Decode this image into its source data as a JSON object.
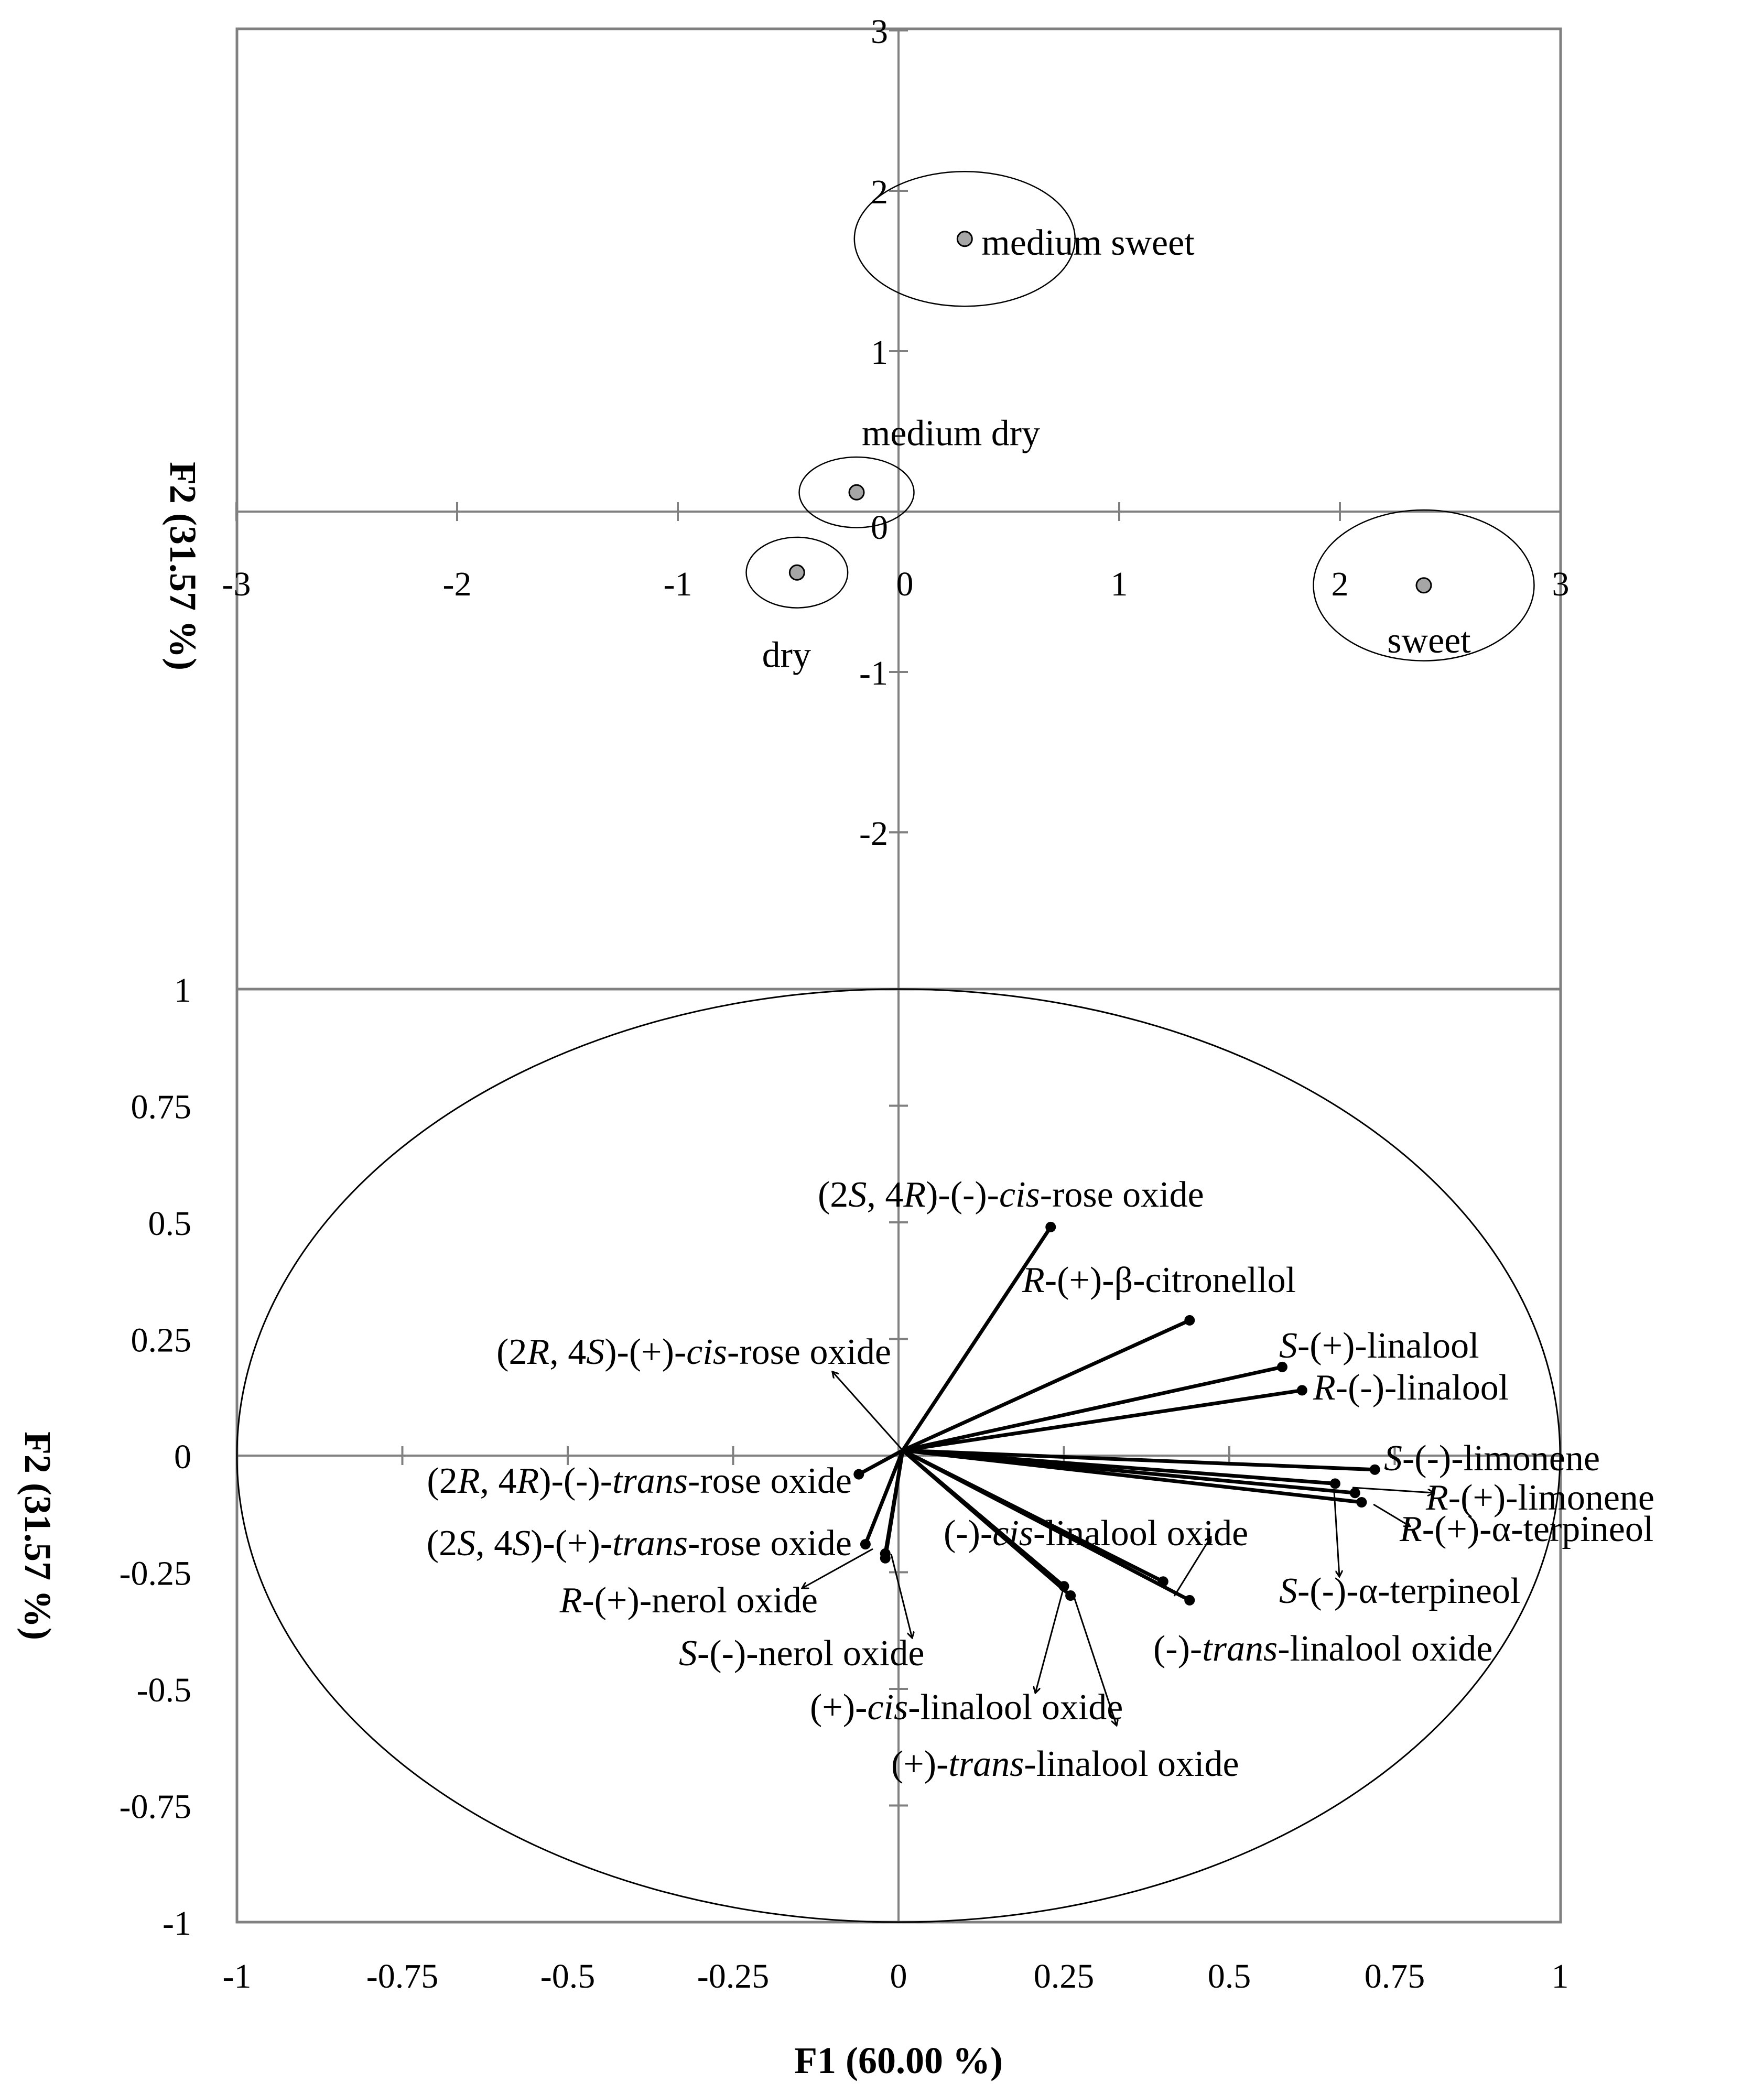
{
  "chart_data": [
    {
      "type": "scatter",
      "title": "",
      "xlabel": "",
      "ylabel": "F2 (31.57 %)",
      "xlim": [
        -3,
        3
      ],
      "ylim": [
        -3,
        3
      ],
      "xticks": [
        -3,
        -2,
        -1,
        0,
        1,
        2,
        3
      ],
      "yticks": [
        -2,
        -1,
        0,
        1,
        2,
        3
      ],
      "xtick_labels": [
        "-3",
        "-2",
        "-1",
        "0",
        "1",
        "2",
        "3"
      ],
      "ytick_labels": [
        "-2",
        "-1",
        "0",
        "1",
        "2",
        "3"
      ],
      "grid": false,
      "points": [
        {
          "label": "medium sweet",
          "x": 0.3,
          "y": 1.7,
          "rx": 0.5,
          "ry": 0.42
        },
        {
          "label": "medium dry",
          "x": -0.19,
          "y": 0.12,
          "rx": 0.26,
          "ry": 0.22
        },
        {
          "label": "dry",
          "x": -0.46,
          "y": -0.38,
          "rx": 0.23,
          "ry": 0.22
        },
        {
          "label": "sweet",
          "x": 2.38,
          "y": -0.46,
          "rx": 0.5,
          "ry": 0.47
        }
      ]
    },
    {
      "type": "scatter",
      "title": "",
      "xlabel": "F1 (60.00 %)",
      "ylabel": "F2 (31.57 %)",
      "xlim": [
        -1,
        1
      ],
      "ylim": [
        -1,
        1
      ],
      "xticks": [
        -1,
        -0.75,
        -0.5,
        -0.25,
        0,
        0.25,
        0.5,
        0.75,
        1
      ],
      "yticks": [
        -1,
        -0.75,
        -0.5,
        -0.25,
        0,
        0.25,
        0.5,
        0.75,
        1
      ],
      "xtick_labels": [
        "-1",
        "-0.75",
        "-0.5",
        "-0.25",
        "0",
        "0.25",
        "0.5",
        "0.75",
        "1"
      ],
      "ytick_labels": [
        "-1",
        "-0.75",
        "-0.5",
        "-0.25",
        "0",
        "0.25",
        "0.5",
        "0.75",
        "1"
      ],
      "grid": false,
      "circle_radius": 1,
      "vectors": [
        {
          "name": "(2S, 4R)-(-)-cis-rose oxide",
          "x": 0.23,
          "y": 0.49
        },
        {
          "name": "R-(+)-β-citronellol",
          "x": 0.44,
          "y": 0.29
        },
        {
          "name": "S-(+)-linalool",
          "x": 0.58,
          "y": 0.19
        },
        {
          "name": "R-(-)-linalool",
          "x": 0.61,
          "y": 0.14
        },
        {
          "name": "S-(-)-limonene",
          "x": 0.72,
          "y": -0.03
        },
        {
          "name": "R-(+)-limonene",
          "x": 0.69,
          "y": -0.08
        },
        {
          "name": "R-(+)-α-terpineol",
          "x": 0.7,
          "y": -0.1
        },
        {
          "name": "S-(-)-α-terpineol",
          "x": 0.66,
          "y": -0.06
        },
        {
          "name": "(2R, 4R)-(-)-trans-rose oxide",
          "x": -0.06,
          "y": -0.04
        },
        {
          "name": "(2S, 4S)-(+)-trans-rose oxide",
          "x": -0.05,
          "y": -0.19
        },
        {
          "name": "R-(+)-nerol oxide",
          "x": -0.02,
          "y": -0.21
        },
        {
          "name": "S-(-)-nerol oxide",
          "x": -0.02,
          "y": -0.22
        },
        {
          "name": "(-)-cis-linalool oxide",
          "x": 0.4,
          "y": -0.27
        },
        {
          "name": "(-)-trans-linalool oxide",
          "x": 0.44,
          "y": -0.31
        },
        {
          "name": "(+)-cis-linalool oxide",
          "x": 0.25,
          "y": -0.28
        },
        {
          "name": "(+)-trans-linalool oxide",
          "x": 0.26,
          "y": -0.3
        },
        {
          "name": "(2R, 4S)-(+)-cis-rose oxide",
          "x": -0.1,
          "y": 0.18
        }
      ]
    }
  ]
}
